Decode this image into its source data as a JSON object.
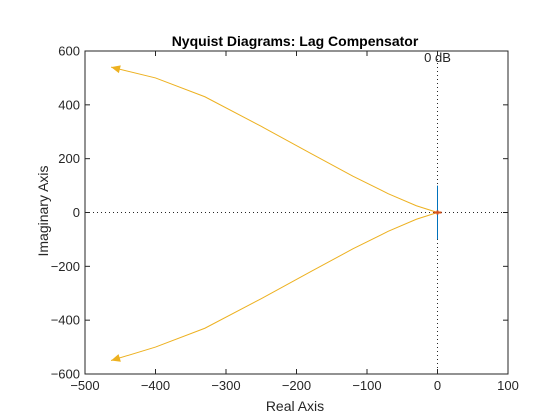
{
  "chart_data": {
    "type": "line",
    "title": "Nyquist Diagrams: Lag Compensator",
    "xlabel": "Real Axis",
    "ylabel": "Imaginary Axis",
    "xlim": [
      -500,
      100
    ],
    "ylim": [
      -600,
      600
    ],
    "xticks": [
      -500,
      -400,
      -300,
      -200,
      -100,
      0,
      100
    ],
    "yticks": [
      -600,
      -400,
      -200,
      0,
      200,
      400,
      600
    ],
    "grid": false,
    "reference_lines": {
      "x": 0,
      "y": 0,
      "style": "dotted"
    },
    "annotations": [
      {
        "text": "0 dB",
        "x": 0,
        "y": 540
      }
    ],
    "series": [
      {
        "color": "#EDB120",
        "x": [
          0,
          -30,
          -70,
          -120,
          -180,
          -250,
          -330,
          -400,
          -463
        ],
        "y": [
          0,
          25,
          70,
          135,
          220,
          320,
          430,
          500,
          540
        ],
        "arrow_at_end": true
      },
      {
        "color": "#EDB120",
        "x": [
          0,
          -30,
          -70,
          -120,
          -180,
          -250,
          -330,
          -400,
          -463
        ],
        "y": [
          0,
          -25,
          -70,
          -135,
          -220,
          -320,
          -430,
          -500,
          -550
        ],
        "arrow_at_end": true
      },
      {
        "color": "#0072BD",
        "x": [
          0,
          0
        ],
        "y": [
          -100,
          100
        ],
        "arrow_at_end": false
      }
    ],
    "markers": [
      {
        "x": 0,
        "y": 0,
        "color": "#D95319"
      }
    ]
  }
}
